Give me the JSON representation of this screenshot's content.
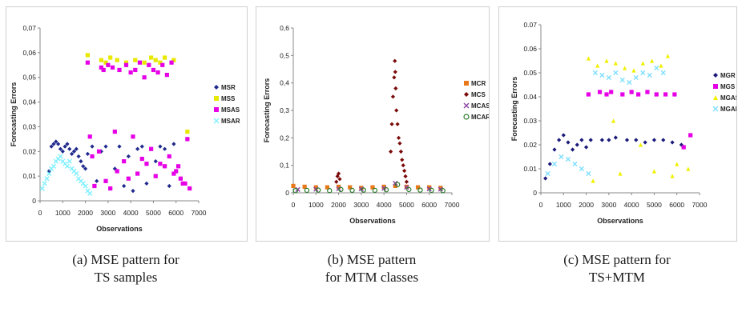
{
  "chart_data": [
    {
      "type": "scatter",
      "xlabel": "Observations",
      "ylabel": "Forecasting Errors",
      "xlim": [
        0,
        7000
      ],
      "ylim": [
        0,
        0.07
      ],
      "x_ticks": [
        "0",
        "1000",
        "2000",
        "3000",
        "4000",
        "5000",
        "6000",
        "7000"
      ],
      "y_ticks": [
        "0",
        "0,01",
        "0,02",
        "0,03",
        "0,04",
        "0,05",
        "0,06",
        "0,07"
      ],
      "caption": [
        "(a) MSE pattern for",
        "TS samples"
      ],
      "series": [
        {
          "name": "MSR",
          "color": "#1f2a8c",
          "marker": "diamond",
          "x": [
            400,
            500,
            600,
            700,
            800,
            900,
            1000,
            1100,
            1200,
            1300,
            1400,
            1500,
            1600,
            1700,
            1800,
            1900,
            2000,
            2100,
            2300,
            2500,
            2700,
            2900,
            3100,
            3300,
            3500,
            3700,
            3900,
            4100,
            4300,
            4500,
            4700,
            4900,
            5100,
            5300,
            5500,
            5700,
            5900
          ],
          "y": [
            0.012,
            0.022,
            0.023,
            0.024,
            0.023,
            0.021,
            0.02,
            0.022,
            0.023,
            0.021,
            0.019,
            0.02,
            0.021,
            0.018,
            0.016,
            0.014,
            0.013,
            0.019,
            0.022,
            0.008,
            0.02,
            0.022,
            0.005,
            0.013,
            0.022,
            0.006,
            0.018,
            0.004,
            0.021,
            0.022,
            0.007,
            0.021,
            0.016,
            0.022,
            0.021,
            0.006,
            0.023
          ]
        },
        {
          "name": "MSS",
          "color": "#e8e800",
          "marker": "square",
          "x": [
            2100,
            2700,
            2900,
            3100,
            3400,
            3800,
            4200,
            4600,
            4900,
            5100,
            5300,
            5500,
            5900,
            6500
          ],
          "y": [
            0.059,
            0.057,
            0.056,
            0.058,
            0.057,
            0.056,
            0.057,
            0.056,
            0.058,
            0.057,
            0.056,
            0.058,
            0.057,
            0.028
          ]
        },
        {
          "name": "MSAS",
          "color": "#e600e6",
          "marker": "square",
          "x": [
            2100,
            2700,
            2800,
            3000,
            3200,
            3500,
            3800,
            4000,
            4200,
            4400,
            4600,
            4800,
            5000,
            5200,
            5400,
            5600,
            5800,
            6000,
            6200,
            6400,
            6600,
            2300,
            2600,
            3300,
            3700,
            4100,
            4500,
            4900,
            5300,
            5700,
            6100,
            2200,
            2900,
            3400,
            3900,
            4300,
            4700,
            5100,
            5500,
            5900,
            6300,
            6500,
            2400,
            3100
          ],
          "y": [
            0.056,
            0.054,
            0.053,
            0.055,
            0.054,
            0.053,
            0.055,
            0.052,
            0.053,
            0.056,
            0.05,
            0.055,
            0.053,
            0.052,
            0.055,
            0.051,
            0.056,
            0.012,
            0.009,
            0.007,
            0.005,
            0.018,
            0.02,
            0.028,
            0.016,
            0.026,
            0.017,
            0.021,
            0.015,
            0.018,
            0.014,
            0.026,
            0.008,
            0.012,
            0.009,
            0.011,
            0.015,
            0.01,
            0.014,
            0.011,
            0.007,
            0.025,
            0.006,
            0.005
          ]
        },
        {
          "name": "MSAR",
          "color": "#7ff0ff",
          "marker": "x",
          "x": [
            100,
            200,
            300,
            400,
            500,
            600,
            700,
            800,
            900,
            1000,
            1100,
            1200,
            1300,
            1400,
            1500,
            1600,
            1700,
            1800,
            1900,
            2000,
            2100,
            2200
          ],
          "y": [
            0.005,
            0.007,
            0.009,
            0.011,
            0.013,
            0.014,
            0.016,
            0.017,
            0.018,
            0.016,
            0.015,
            0.014,
            0.016,
            0.013,
            0.012,
            0.011,
            0.009,
            0.008,
            0.007,
            0.006,
            0.004,
            0.003
          ]
        }
      ]
    },
    {
      "type": "scatter",
      "xlabel": "Observations",
      "ylabel": "Forecasting Errors",
      "xlim": [
        0,
        7000
      ],
      "ylim": [
        0,
        0.6
      ],
      "x_ticks": [
        "0",
        "1000",
        "2000",
        "3000",
        "4000",
        "5000",
        "6000",
        "7000"
      ],
      "y_ticks": [
        "0",
        "0,1",
        "0,2",
        "0,3",
        "0,4",
        "0,5",
        "0,6"
      ],
      "caption": [
        "(b) MSE pattern",
        "for  MTM classes"
      ],
      "series": [
        {
          "name": "MCR",
          "color": "#e8781a",
          "marker": "square",
          "x": [
            0,
            500,
            1000,
            1500,
            2000,
            2500,
            3000,
            3500,
            4000,
            4500,
            5000,
            5500,
            6000,
            6500
          ],
          "y": [
            0.025,
            0.022,
            0.02,
            0.02,
            0.022,
            0.02,
            0.018,
            0.02,
            0.022,
            0.025,
            0.022,
            0.02,
            0.02,
            0.018
          ]
        },
        {
          "name": "MCS",
          "color": "#7a0a0a",
          "marker": "diamond",
          "x": [
            1900,
            1950,
            2000,
            2050,
            4300,
            4350,
            4400,
            4450,
            4480,
            4500,
            4520,
            4550,
            4600,
            4650,
            4700,
            4750,
            4800,
            4850,
            4900,
            4950,
            5000
          ],
          "y": [
            0.04,
            0.06,
            0.07,
            0.05,
            0.15,
            0.25,
            0.35,
            0.42,
            0.48,
            0.44,
            0.38,
            0.3,
            0.25,
            0.2,
            0.18,
            0.15,
            0.12,
            0.1,
            0.08,
            0.06,
            0.04
          ]
        },
        {
          "name": "MCAS",
          "color": "#8a40a0",
          "marker": "x",
          "x": [
            200,
            1000,
            2000,
            3000,
            4000,
            4500,
            5000,
            6000,
            6500
          ],
          "y": [
            0.012,
            0.013,
            0.015,
            0.014,
            0.016,
            0.035,
            0.02,
            0.014,
            0.013
          ]
        },
        {
          "name": "MCAR",
          "color": "#2a7a2a",
          "marker": "circle",
          "x": [
            100,
            600,
            1100,
            1600,
            2100,
            2600,
            3100,
            3600,
            4100,
            4600,
            5100,
            5600,
            6100,
            6600
          ],
          "y": [
            0.008,
            0.009,
            0.01,
            0.008,
            0.012,
            0.009,
            0.01,
            0.009,
            0.011,
            0.03,
            0.012,
            0.01,
            0.009,
            0.008
          ]
        }
      ]
    },
    {
      "type": "scatter",
      "xlabel": "Observations",
      "ylabel": "Forecasting Errors",
      "xlim": [
        0,
        7000
      ],
      "ylim": [
        0,
        0.07
      ],
      "x_ticks": [
        "0",
        "1000",
        "2000",
        "3000",
        "4000",
        "5000",
        "6000",
        "7000"
      ],
      "y_ticks": [
        "0",
        "0.01",
        "0.02",
        "0.03",
        "0.04",
        "0.05",
        "0.06",
        "0.07"
      ],
      "caption": [
        "(c) MSE pattern for",
        "TS+MTM"
      ],
      "series": [
        {
          "name": "MGR",
          "color": "#1a1a7a",
          "marker": "diamond",
          "x": [
            200,
            400,
            600,
            800,
            1000,
            1200,
            1400,
            1600,
            1800,
            2000,
            2200,
            2700,
            3000,
            3300,
            3800,
            4200,
            4600,
            5000,
            5400,
            5800,
            6200
          ],
          "y": [
            0.006,
            0.012,
            0.018,
            0.022,
            0.024,
            0.021,
            0.018,
            0.02,
            0.022,
            0.019,
            0.022,
            0.022,
            0.022,
            0.023,
            0.022,
            0.022,
            0.021,
            0.022,
            0.022,
            0.021,
            0.02
          ]
        },
        {
          "name": "MGS",
          "color": "#e600e6",
          "marker": "square",
          "x": [
            2100,
            2600,
            2900,
            3100,
            3600,
            4000,
            4300,
            4700,
            5100,
            5500,
            5900,
            6300,
            6600
          ],
          "y": [
            0.041,
            0.042,
            0.041,
            0.042,
            0.041,
            0.042,
            0.041,
            0.042,
            0.041,
            0.041,
            0.041,
            0.019,
            0.024
          ]
        },
        {
          "name": "MGAS",
          "color": "#f0f000",
          "marker": "triangle",
          "x": [
            2100,
            2500,
            2900,
            3300,
            3700,
            4100,
            4500,
            4900,
            5300,
            5600,
            6000,
            6500,
            2300,
            3200,
            3500,
            4400,
            5000,
            5800
          ],
          "y": [
            0.056,
            0.053,
            0.055,
            0.054,
            0.052,
            0.051,
            0.054,
            0.055,
            0.053,
            0.057,
            0.012,
            0.01,
            0.005,
            0.03,
            0.008,
            0.02,
            0.009,
            0.007
          ]
        },
        {
          "name": "MGAR",
          "color": "#7fdfff",
          "marker": "x",
          "x": [
            300,
            600,
            900,
            1200,
            1500,
            1800,
            2100,
            2400,
            2700,
            3000,
            3300,
            3600,
            3900,
            4200,
            4500,
            4800,
            5100,
            5400
          ],
          "y": [
            0.008,
            0.012,
            0.015,
            0.014,
            0.012,
            0.01,
            0.008,
            0.05,
            0.049,
            0.048,
            0.05,
            0.047,
            0.046,
            0.048,
            0.05,
            0.049,
            0.052,
            0.05
          ]
        }
      ]
    }
  ]
}
